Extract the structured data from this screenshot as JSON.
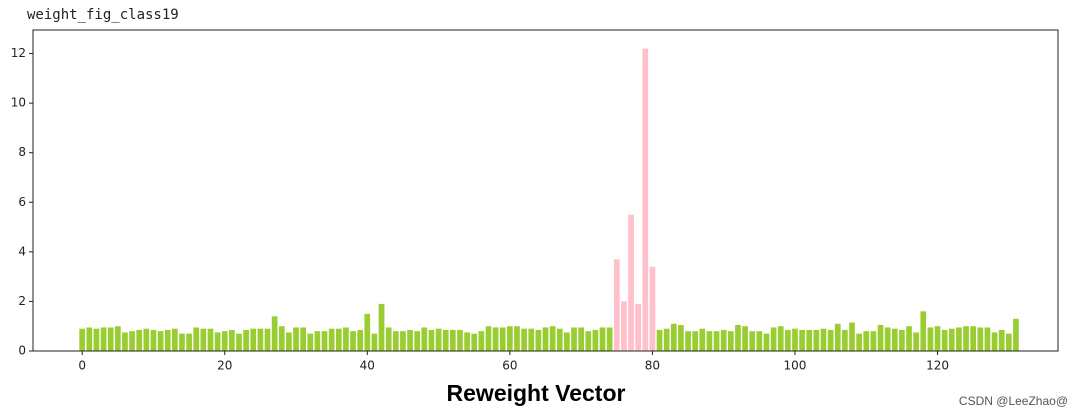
{
  "chart_data": {
    "type": "bar",
    "title": "weight_fig_class19",
    "xlabel": "Reweight Vector",
    "watermark": "CSDN @LeeZhao@",
    "x": [
      0,
      1,
      2,
      3,
      4,
      5,
      6,
      7,
      8,
      9,
      10,
      11,
      12,
      13,
      14,
      15,
      16,
      17,
      18,
      19,
      20,
      21,
      22,
      23,
      24,
      25,
      26,
      27,
      28,
      29,
      30,
      31,
      32,
      33,
      34,
      35,
      36,
      37,
      38,
      39,
      40,
      41,
      42,
      43,
      44,
      45,
      46,
      47,
      48,
      49,
      50,
      51,
      52,
      53,
      54,
      55,
      56,
      57,
      58,
      59,
      60,
      61,
      62,
      63,
      64,
      65,
      66,
      67,
      68,
      69,
      70,
      71,
      72,
      73,
      74,
      75,
      76,
      77,
      78,
      79,
      80,
      81,
      82,
      83,
      84,
      85,
      86,
      87,
      88,
      89,
      90,
      91,
      92,
      93,
      94,
      95,
      96,
      97,
      98,
      99,
      100,
      101,
      102,
      103,
      104,
      105,
      106,
      107,
      108,
      109,
      110,
      111,
      112,
      113,
      114,
      115,
      116,
      117,
      118,
      119,
      120,
      121,
      122,
      123,
      124,
      125,
      126,
      127,
      128,
      129,
      130,
      131
    ],
    "values": [
      0.9,
      0.95,
      0.9,
      0.95,
      0.95,
      1.0,
      0.75,
      0.8,
      0.85,
      0.9,
      0.85,
      0.8,
      0.85,
      0.9,
      0.7,
      0.7,
      0.95,
      0.9,
      0.9,
      0.75,
      0.8,
      0.85,
      0.7,
      0.85,
      0.9,
      0.9,
      0.9,
      1.4,
      1.0,
      0.75,
      0.95,
      0.95,
      0.7,
      0.8,
      0.8,
      0.9,
      0.9,
      0.95,
      0.8,
      0.85,
      1.5,
      0.7,
      1.9,
      0.95,
      0.8,
      0.8,
      0.85,
      0.8,
      0.95,
      0.85,
      0.9,
      0.85,
      0.85,
      0.85,
      0.75,
      0.7,
      0.8,
      1.0,
      0.95,
      0.95,
      1.0,
      1.0,
      0.9,
      0.9,
      0.85,
      0.95,
      1.0,
      0.9,
      0.75,
      0.95,
      0.95,
      0.8,
      0.85,
      0.95,
      0.95,
      3.7,
      2.0,
      5.5,
      1.9,
      12.2,
      3.4,
      0.85,
      0.9,
      1.1,
      1.05,
      0.8,
      0.8,
      0.9,
      0.8,
      0.8,
      0.85,
      0.8,
      1.05,
      1.0,
      0.8,
      0.8,
      0.7,
      0.95,
      1.0,
      0.85,
      0.9,
      0.85,
      0.85,
      0.85,
      0.9,
      0.85,
      1.1,
      0.85,
      1.15,
      0.7,
      0.8,
      0.8,
      1.05,
      0.95,
      0.9,
      0.85,
      1.0,
      0.75,
      1.6,
      0.95,
      1.0,
      0.85,
      0.9,
      0.95,
      1.0,
      1.0,
      0.95,
      0.95,
      0.75,
      0.85,
      0.7,
      1.3
    ],
    "colors": [
      "yellowgreen",
      "yellowgreen",
      "yellowgreen",
      "yellowgreen",
      "yellowgreen",
      "yellowgreen",
      "yellowgreen",
      "yellowgreen",
      "yellowgreen",
      "yellowgreen",
      "yellowgreen",
      "yellowgreen",
      "yellowgreen",
      "yellowgreen",
      "yellowgreen",
      "yellowgreen",
      "yellowgreen",
      "yellowgreen",
      "yellowgreen",
      "yellowgreen",
      "yellowgreen",
      "yellowgreen",
      "yellowgreen",
      "yellowgreen",
      "yellowgreen",
      "yellowgreen",
      "yellowgreen",
      "yellowgreen",
      "yellowgreen",
      "yellowgreen",
      "yellowgreen",
      "yellowgreen",
      "yellowgreen",
      "yellowgreen",
      "yellowgreen",
      "yellowgreen",
      "yellowgreen",
      "yellowgreen",
      "yellowgreen",
      "yellowgreen",
      "yellowgreen",
      "yellowgreen",
      "yellowgreen",
      "yellowgreen",
      "yellowgreen",
      "yellowgreen",
      "yellowgreen",
      "yellowgreen",
      "yellowgreen",
      "yellowgreen",
      "yellowgreen",
      "yellowgreen",
      "yellowgreen",
      "yellowgreen",
      "yellowgreen",
      "yellowgreen",
      "yellowgreen",
      "yellowgreen",
      "yellowgreen",
      "yellowgreen",
      "yellowgreen",
      "yellowgreen",
      "yellowgreen",
      "yellowgreen",
      "yellowgreen",
      "yellowgreen",
      "yellowgreen",
      "yellowgreen",
      "yellowgreen",
      "yellowgreen",
      "yellowgreen",
      "yellowgreen",
      "yellowgreen",
      "yellowgreen",
      "yellowgreen",
      "pink",
      "pink",
      "pink",
      "pink",
      "pink",
      "pink",
      "yellowgreen",
      "yellowgreen",
      "yellowgreen",
      "yellowgreen",
      "yellowgreen",
      "yellowgreen",
      "yellowgreen",
      "yellowgreen",
      "yellowgreen",
      "yellowgreen",
      "yellowgreen",
      "yellowgreen",
      "yellowgreen",
      "yellowgreen",
      "yellowgreen",
      "yellowgreen",
      "yellowgreen",
      "yellowgreen",
      "yellowgreen",
      "yellowgreen",
      "yellowgreen",
      "yellowgreen",
      "yellowgreen",
      "yellowgreen",
      "yellowgreen",
      "yellowgreen",
      "yellowgreen",
      "yellowgreen",
      "yellowgreen",
      "yellowgreen",
      "yellowgreen",
      "yellowgreen",
      "yellowgreen",
      "yellowgreen",
      "yellowgreen",
      "yellowgreen",
      "yellowgreen",
      "yellowgreen",
      "yellowgreen",
      "yellowgreen",
      "yellowgreen",
      "yellowgreen",
      "yellowgreen",
      "yellowgreen",
      "yellowgreen",
      "yellowgreen",
      "yellowgreen",
      "yellowgreen",
      "yellowgreen",
      "yellowgreen",
      "yellowgreen"
    ],
    "xlim": [
      -6.9,
      136.9
    ],
    "xticks": [
      0,
      20,
      40,
      60,
      80,
      100,
      120
    ],
    "ylim": [
      0,
      12.95
    ],
    "yticks": [
      0,
      2,
      4,
      6,
      8,
      10,
      12
    ]
  }
}
